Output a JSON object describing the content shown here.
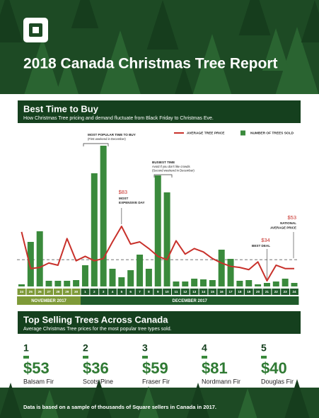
{
  "header": {
    "title": "2018 Canada Christmas Tree Report"
  },
  "section1": {
    "title": "Best Time to Buy",
    "subtitle": "How Christmas Tree pricing and demand fluctuate from Black Friday to Christmas Eve."
  },
  "chart_data": {
    "type": "bar",
    "groups": [
      {
        "label": "NOVEMBER 2017",
        "categories": [
          "24",
          "25",
          "26",
          "27",
          "28",
          "29",
          "30"
        ]
      },
      {
        "label": "DECEMBER 2017",
        "categories": [
          "1",
          "2",
          "3",
          "4",
          "5",
          "6",
          "7",
          "8",
          "9",
          "10",
          "11",
          "12",
          "13",
          "14",
          "15",
          "16",
          "17",
          "18",
          "19",
          "20",
          "21",
          "22",
          "23",
          "24"
        ]
      }
    ],
    "series": [
      {
        "name": "AVERAGE TREE PRICE",
        "type": "line",
        "color": "#c8312b",
        "values": [
          78,
          45,
          46,
          50,
          48,
          72,
          52,
          56,
          52,
          54,
          69,
          83,
          67,
          69,
          63,
          56,
          53,
          70,
          58,
          63,
          60,
          54,
          50,
          47,
          46,
          44,
          51,
          34,
          48,
          45,
          45
        ],
        "value_labels": [
          null,
          null,
          null,
          null,
          null,
          null,
          null,
          null,
          null,
          null,
          null,
          "$83",
          null,
          null,
          null,
          null,
          null,
          null,
          null,
          null,
          null,
          null,
          null,
          null,
          null,
          null,
          null,
          "$34",
          null,
          null,
          null
        ]
      },
      {
        "name": "NUMBER OF TREES SOLD",
        "type": "bar",
        "color": "#3a8a3c",
        "values": [
          3,
          63,
          78,
          8,
          8,
          8,
          9,
          30,
          160,
          199,
          25,
          13,
          23,
          45,
          25,
          157,
          133,
          7,
          7,
          11,
          10,
          9,
          52,
          39,
          8,
          9,
          3,
          5,
          7,
          11,
          5
        ]
      }
    ],
    "reference_line": {
      "value": 53,
      "label": "$53",
      "lines": [
        "NATIONAL",
        "AVERAGE PRICE"
      ]
    },
    "annotations": [
      {
        "lines": [
          "MOST POPULAR TIME TO BUY",
          "(First weekend in December)"
        ]
      },
      {
        "lines": [
          "BUSIEST TIME",
          "Avoid if you don't like crowds",
          "(Second weekend in December)"
        ]
      },
      {
        "lines": [
          "MOST",
          "EXPENSIVE DAY"
        ]
      },
      {
        "lines": [
          "BEST DEAL"
        ]
      }
    ]
  },
  "section2": {
    "title": "Top Selling Trees Across Canada",
    "subtitle": "Average Christmas Tree prices for the most popular tree types sold.",
    "items": [
      {
        "rank": 1,
        "price": "$53",
        "name": "Balsam Fir"
      },
      {
        "rank": 2,
        "price": "$36",
        "name": "Scots Pine"
      },
      {
        "rank": 3,
        "price": "$59",
        "name": "Fraser Fir"
      },
      {
        "rank": 4,
        "price": "$81",
        "name": "Nordmann Fir"
      },
      {
        "rank": 5,
        "price": "$40",
        "name": "Douglas Fir"
      }
    ]
  },
  "footer": {
    "text": "Data is based on a sample of thousands of Square sellers in Canada in 2017."
  }
}
